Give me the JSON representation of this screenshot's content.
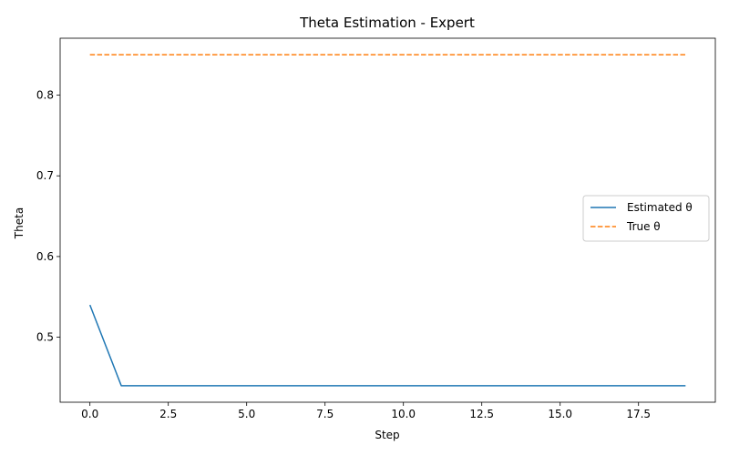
{
  "chart_data": {
    "type": "line",
    "title": "Theta Estimation - Expert",
    "xlabel": "Step",
    "ylabel": "Theta",
    "xlim": [
      -0.95,
      19.95
    ],
    "ylim": [
      0.4195,
      0.8705
    ],
    "xticks": [
      0.0,
      2.5,
      5.0,
      7.5,
      10.0,
      12.5,
      15.0,
      17.5
    ],
    "xtick_labels": [
      "0.0",
      "2.5",
      "5.0",
      "7.5",
      "10.0",
      "12.5",
      "15.0",
      "17.5"
    ],
    "yticks": [
      0.5,
      0.6,
      0.7,
      0.8
    ],
    "ytick_labels": [
      "0.5",
      "0.6",
      "0.7",
      "0.8"
    ],
    "grid": false,
    "legend_position": "center-right",
    "x": [
      0,
      1,
      2,
      3,
      4,
      5,
      6,
      7,
      8,
      9,
      10,
      11,
      12,
      13,
      14,
      15,
      16,
      17,
      18,
      19
    ],
    "series": [
      {
        "name": "Estimated θ",
        "color": "#1f77b4",
        "style": "solid",
        "values": [
          0.54,
          0.44,
          0.44,
          0.44,
          0.44,
          0.44,
          0.44,
          0.44,
          0.44,
          0.44,
          0.44,
          0.44,
          0.44,
          0.44,
          0.44,
          0.44,
          0.44,
          0.44,
          0.44,
          0.44
        ]
      },
      {
        "name": "True θ",
        "color": "#ff7f0e",
        "style": "dashed",
        "values": [
          0.85,
          0.85,
          0.85,
          0.85,
          0.85,
          0.85,
          0.85,
          0.85,
          0.85,
          0.85,
          0.85,
          0.85,
          0.85,
          0.85,
          0.85,
          0.85,
          0.85,
          0.85,
          0.85,
          0.85
        ]
      }
    ]
  }
}
